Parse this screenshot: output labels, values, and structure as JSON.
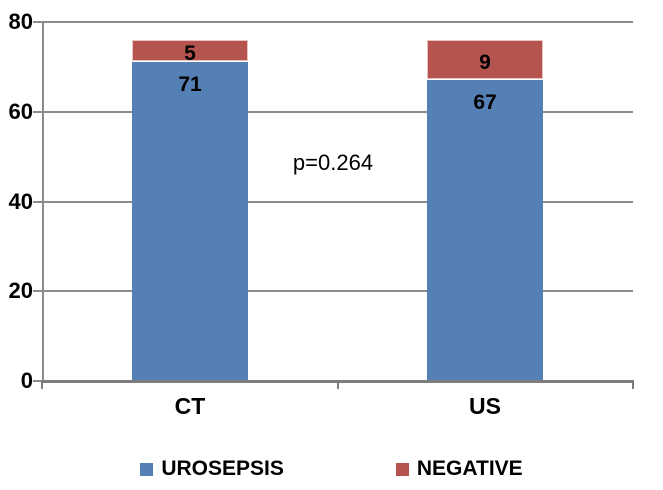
{
  "chart_data": {
    "type": "bar",
    "stacked": true,
    "categories": [
      "CT",
      "US"
    ],
    "series": [
      {
        "name": "UROSEPSIS",
        "color": "#5580B6",
        "values": [
          71,
          67
        ]
      },
      {
        "name": "NEGATIVE",
        "color": "#B5544F",
        "values": [
          5,
          9
        ]
      }
    ],
    "annotation": "p=0.264",
    "ylim": [
      0,
      80
    ],
    "yticks": [
      0,
      20,
      40,
      60,
      80
    ],
    "grid": true,
    "legend_position": "bottom",
    "colors": {
      "grid": "#8C8C8C",
      "axis": "#7D7D7D",
      "segment_outline": "#FFFFFF",
      "text": "#000000",
      "background": "#FFFFFF"
    }
  }
}
